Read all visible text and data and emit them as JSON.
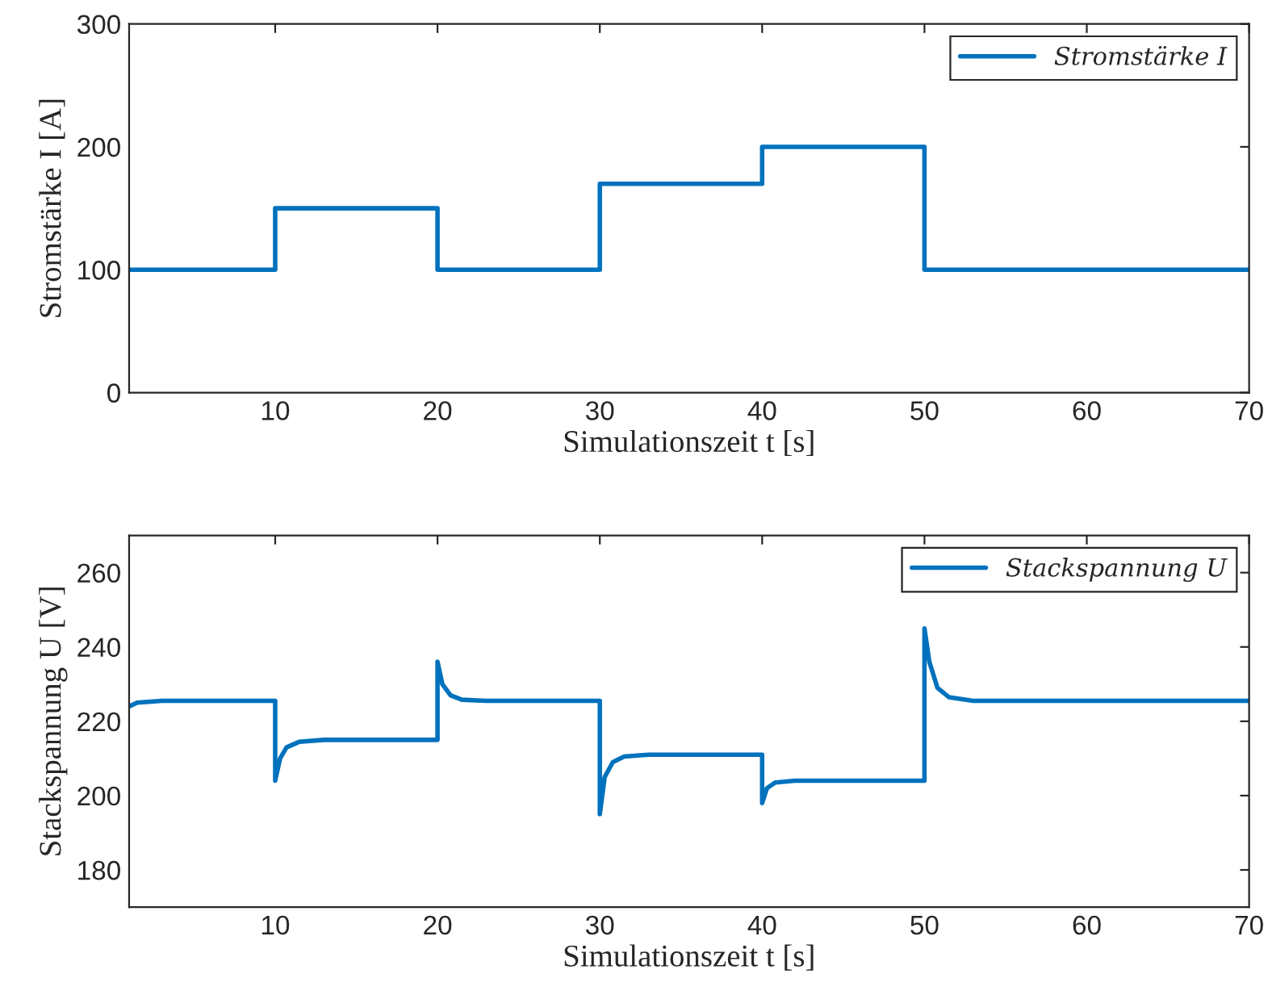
{
  "chart_data": [
    {
      "type": "line",
      "xlabel": "Simulationszeit t [s]",
      "ylabel": "Stromstärke I [A]",
      "xlim": [
        1,
        70
      ],
      "xticks": [
        10,
        20,
        30,
        40,
        50,
        60,
        70
      ],
      "ylim": [
        0,
        300
      ],
      "yticks": [
        0,
        100,
        200,
        300
      ],
      "grid": false,
      "legend": "top right",
      "series": [
        {
          "name": "Stromstärke I",
          "color": "#0072bd",
          "x": [
            1,
            10,
            10,
            20,
            20,
            30,
            30,
            40,
            40,
            50,
            50,
            70
          ],
          "values": [
            100,
            100,
            150,
            150,
            100,
            100,
            170,
            170,
            200,
            200,
            100,
            100
          ]
        }
      ]
    },
    {
      "type": "line",
      "xlabel": "Simulationszeit t [s]",
      "ylabel": "Stackspannung U [V]",
      "xlim": [
        1,
        70
      ],
      "xticks": [
        10,
        20,
        30,
        40,
        50,
        60,
        70
      ],
      "ylim": [
        170,
        270
      ],
      "yticks": [
        180,
        200,
        220,
        240,
        260
      ],
      "grid": false,
      "legend": "top right",
      "series": [
        {
          "name": "Stackspannung U",
          "color": "#0072bd",
          "x": [
            1,
            1.5,
            3,
            10,
            10,
            10.3,
            10.7,
            11.5,
            13,
            20,
            20,
            20.3,
            20.8,
            21.5,
            23,
            30,
            30,
            30.3,
            30.8,
            31.5,
            33,
            40,
            40,
            40.3,
            40.8,
            42,
            50,
            50,
            50.3,
            50.8,
            51.5,
            53,
            70
          ],
          "values": [
            224,
            225,
            225.5,
            225.5,
            204,
            210,
            213,
            214.5,
            215,
            215,
            236,
            230,
            227,
            225.8,
            225.5,
            225.5,
            195,
            205,
            209,
            210.5,
            211,
            211,
            198,
            202,
            203.5,
            204,
            204,
            245,
            236,
            229,
            226.5,
            225.5,
            225.5
          ]
        }
      ]
    }
  ]
}
